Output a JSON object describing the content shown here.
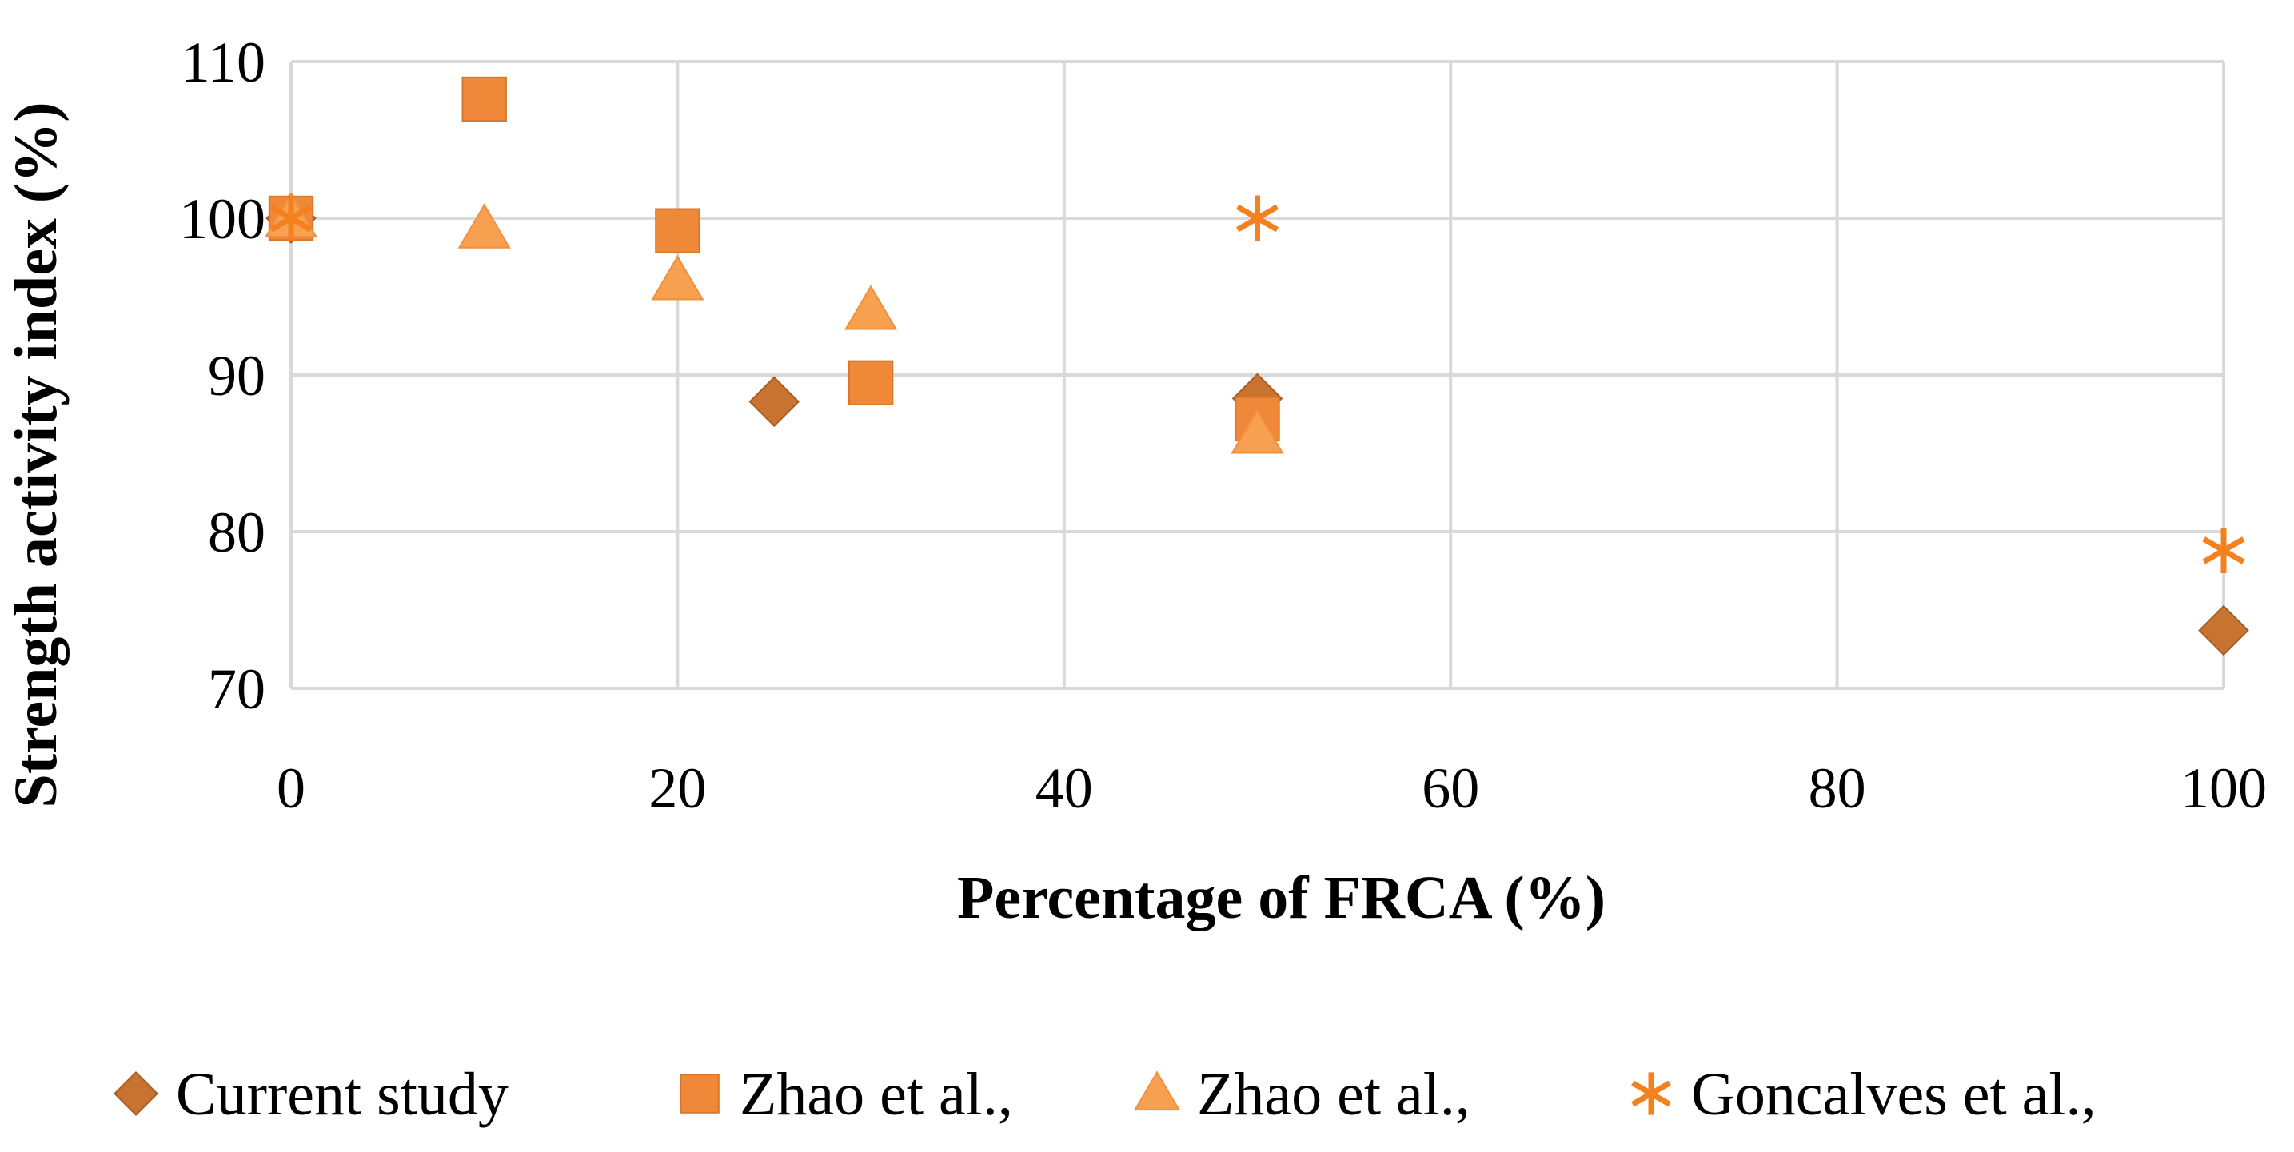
{
  "chart_data": {
    "type": "scatter",
    "title": "",
    "xlabel": "Percentage of FRCA (%)",
    "ylabel": "Strength activity index (%)",
    "xlim": [
      0,
      100
    ],
    "ylim": [
      70,
      110
    ],
    "xticks": [
      0,
      20,
      40,
      60,
      80,
      100
    ],
    "yticks": [
      70,
      80,
      90,
      100,
      110
    ],
    "grid": true,
    "legend_position": "bottom",
    "series": [
      {
        "name": "Current study",
        "marker": "diamond",
        "color": "#c8732f",
        "points": [
          {
            "x": 0,
            "y": 100
          },
          {
            "x": 25,
            "y": 88.3
          },
          {
            "x": 50,
            "y": 88.5
          },
          {
            "x": 100,
            "y": 73.7
          }
        ]
      },
      {
        "name": "Zhao et al.,",
        "marker": "square",
        "color": "#f0883a",
        "points": [
          {
            "x": 0,
            "y": 100
          },
          {
            "x": 10,
            "y": 107.6
          },
          {
            "x": 20,
            "y": 99.2
          },
          {
            "x": 30,
            "y": 89.5
          },
          {
            "x": 50,
            "y": 87.2
          }
        ]
      },
      {
        "name": "Zhao et al.,",
        "marker": "triangle",
        "color": "#f7a04f",
        "points": [
          {
            "x": 0,
            "y": 100
          },
          {
            "x": 10,
            "y": 99.3
          },
          {
            "x": 20,
            "y": 96
          },
          {
            "x": 30,
            "y": 94.1
          },
          {
            "x": 50,
            "y": 86.2
          }
        ]
      },
      {
        "name": "Goncalves et al.,",
        "marker": "asterisk",
        "color": "#f5801e",
        "points": [
          {
            "x": 0,
            "y": 100
          },
          {
            "x": 50,
            "y": 100
          },
          {
            "x": 100,
            "y": 78.8
          }
        ]
      }
    ]
  }
}
